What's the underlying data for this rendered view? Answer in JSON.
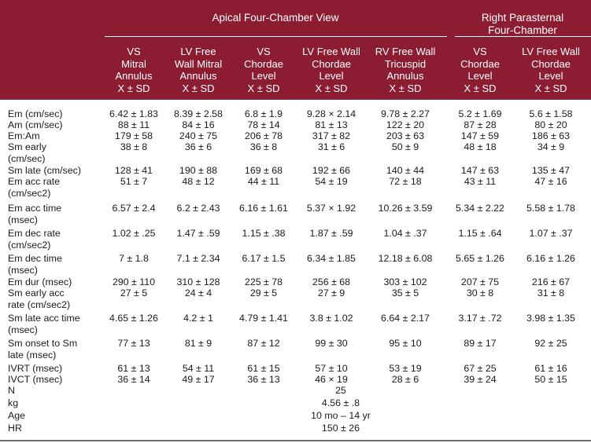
{
  "header": {
    "group_apical": "Apical Four-Chamber View",
    "group_parasternal_line1": "Right Parasternal",
    "group_parasternal_line2": "Four-Chamber",
    "columns": [
      {
        "lines": [
          "VS",
          "Mitral",
          "Annulus",
          "X ± SD"
        ]
      },
      {
        "lines": [
          "LV Free",
          "Wall Mitral",
          "Annulus",
          "X ± SD"
        ]
      },
      {
        "lines": [
          "VS",
          "Chordae",
          "Level",
          "X ± SD"
        ]
      },
      {
        "lines": [
          "LV Free Wall",
          "Chordae",
          "Level",
          "X ± SD"
        ]
      },
      {
        "lines": [
          "RV Free Wall",
          "Tricuspid",
          "Annulus",
          "X ± SD"
        ]
      },
      {
        "lines": [
          "VS",
          "Chordae",
          "Level",
          "X ± SD"
        ]
      },
      {
        "lines": [
          "LV Free Wall",
          "Chordae",
          "Level",
          "X ± SD"
        ]
      }
    ]
  },
  "rows": [
    {
      "label": [
        "Em (cm/sec)"
      ],
      "values": [
        "6.42 ± 1.83",
        "8.39 ± 2.58",
        "6.8 ± 1.9",
        "9.28 × 2.14",
        "9.78 ± 2.27",
        "5.2 ± 1.69",
        "5.6 ± 1.58"
      ]
    },
    {
      "label": [
        "Am (cm/sec)"
      ],
      "values": [
        "88 ± 11",
        "84 ± 16",
        "78 ± 14",
        "81 ± 13",
        "122 ± 20",
        "87 ± 28",
        "80 ± 20"
      ]
    },
    {
      "label": [
        "Em:Am"
      ],
      "values": [
        "179 ± 58",
        "240 ± 75",
        "206 ± 78",
        "317 ± 82",
        "203 ± 63",
        "147 ± 59",
        "186 ± 63"
      ]
    },
    {
      "label": [
        "Sm early",
        "(cm/sec)"
      ],
      "values": [
        "38 ± 8",
        "36 ± 6",
        "36 ± 8",
        "31 ± 6",
        "50 ± 9",
        "48 ± 18",
        "34 ± 9"
      ]
    },
    {
      "label": [
        "Sm late (cm/sec)"
      ],
      "values": [
        "128 ± 41",
        "190 ± 88",
        "169 ± 68",
        "192 ± 66",
        "140 ± 44",
        "147 ± 63",
        "135 ± 47"
      ]
    },
    {
      "label": [
        "Em acc rate",
        "(cm/sec2)"
      ],
      "values": [
        "51 ± 7",
        "48 ± 12",
        "44 ± 11",
        "54 ± 19",
        "72 ± 18",
        "43 ± 11",
        "47 ± 16"
      ]
    },
    {
      "label": [
        "Em acc time",
        "(msec)"
      ],
      "values": [
        "6.57 ± 2.4",
        "6.2 ± 2.43",
        "6.16 ± 1.61",
        "5.37 × 1.92",
        "10.26 ± 3.59",
        "5.34 ± 2.22",
        "5.58 ± 1.78"
      ]
    },
    {
      "label": [
        "Em dec rate",
        "(cm/sec2)"
      ],
      "values": [
        "1.02 ± .25",
        "1.47 ± .59",
        "1.15 ± .38",
        "1.87 ± .59",
        "1.04 ± .37",
        "1.15 ± .64",
        "1.07 ± .37"
      ]
    },
    {
      "label": [
        "Em dec time",
        "(msec)"
      ],
      "values": [
        "7 ± 1.8",
        "7.1 ± 2.34",
        "6.17 ± 1.5",
        "6.34 ± 1.85",
        "12.18 ± 6.08",
        "5.65 ± 1.26",
        "6.16 ± 1.26"
      ]
    },
    {
      "label": [
        "Em dur (msec)"
      ],
      "values": [
        "290 ± 110",
        "310 ± 128",
        "225 ± 78",
        "256 ± 68",
        "303 ± 102",
        "207 ± 75",
        "216 ± 67"
      ]
    },
    {
      "label": [
        "Sm early acc",
        "rate (cm/sec2)"
      ],
      "values": [
        "27 ± 5",
        "24 ± 4",
        "29 ± 5",
        "27 ± 9",
        "35 ± 5",
        "30 ± 8",
        "31 ± 8"
      ]
    },
    {
      "label": [
        "Sm late acc time",
        "(msec)"
      ],
      "values": [
        "4.65 ± 1.26",
        "4.2 ± 1",
        "4.79 ± 1.41",
        "3.8 ± 1.02",
        "6.64 ± 2.17",
        "3.17 ± .72",
        "3.98 ± 1.35"
      ]
    },
    {
      "label": [
        "Sm onset to Sm",
        "late (msec)"
      ],
      "values": [
        "77 ± 13",
        "81 ± 9",
        "87 ± 12",
        "99 ± 30",
        "95 ± 10",
        "89 ± 17",
        "92 ± 25"
      ]
    },
    {
      "label": [
        "IVRT (msec)"
      ],
      "values": [
        "61 ± 13",
        "54 ± 11",
        "61 ± 15",
        "57 ± 10",
        "53 ± 19",
        "67 ± 25",
        "61 ± 16"
      ]
    },
    {
      "label": [
        "IVCT (msec)"
      ],
      "values": [
        "36 ± 14",
        "49 ± 17",
        "36 ± 13",
        "46 × 19",
        "28 ± 6",
        "39 ± 24",
        "50 ± 15"
      ]
    }
  ],
  "summary": [
    {
      "label": "N",
      "value": "25"
    },
    {
      "label": "kg",
      "value": "4.56 ± .8"
    },
    {
      "label": "Age",
      "value": "10 mo – 14 yr"
    },
    {
      "label": "HR",
      "value": "150 ± 26"
    }
  ]
}
